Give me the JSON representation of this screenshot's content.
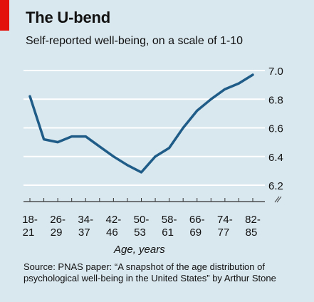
{
  "header": {
    "title": "The U-bend",
    "subtitle": "Self-reported well-being, on a scale of 1-10"
  },
  "footer": {
    "source": "Source: PNAS paper: “A snapshot of the age distribution of psychological well-being in the United States” by Arthur Stone"
  },
  "colors": {
    "background": "#d9e7ee",
    "line": "#1f5c87",
    "grid": "#ffffff",
    "accent": "#e3120b",
    "text": "#111111"
  },
  "chart_data": {
    "type": "line",
    "title": "The U-bend",
    "subtitle": "Self-reported well-being, on a scale of 1-10",
    "xlabel": "Age, years",
    "ylabel": "",
    "categories_top": [
      "18-",
      "26-",
      "34-",
      "42-",
      "50-",
      "58-",
      "66-",
      "74-",
      "82-"
    ],
    "categories_bottom": [
      "21",
      "29",
      "37",
      "46",
      "53",
      "61",
      "69",
      "77",
      "85"
    ],
    "x": [
      18,
      22,
      26,
      30,
      34,
      38,
      42,
      46,
      50,
      54,
      58,
      62,
      66,
      70,
      74,
      78,
      82
    ],
    "series": [
      {
        "values": [
          6.82,
          6.52,
          6.5,
          6.54,
          6.54,
          6.47,
          6.4,
          6.34,
          6.29,
          6.4,
          6.46,
          6.6,
          6.72,
          6.8,
          6.87,
          6.91,
          6.97
        ]
      }
    ],
    "y_ticks": [
      "7.0",
      "6.8",
      "6.6",
      "6.4",
      "6.2"
    ],
    "ylim": [
      6.2,
      7.0
    ],
    "axis_break": true,
    "grid": true,
    "y_axis_side": "right"
  }
}
